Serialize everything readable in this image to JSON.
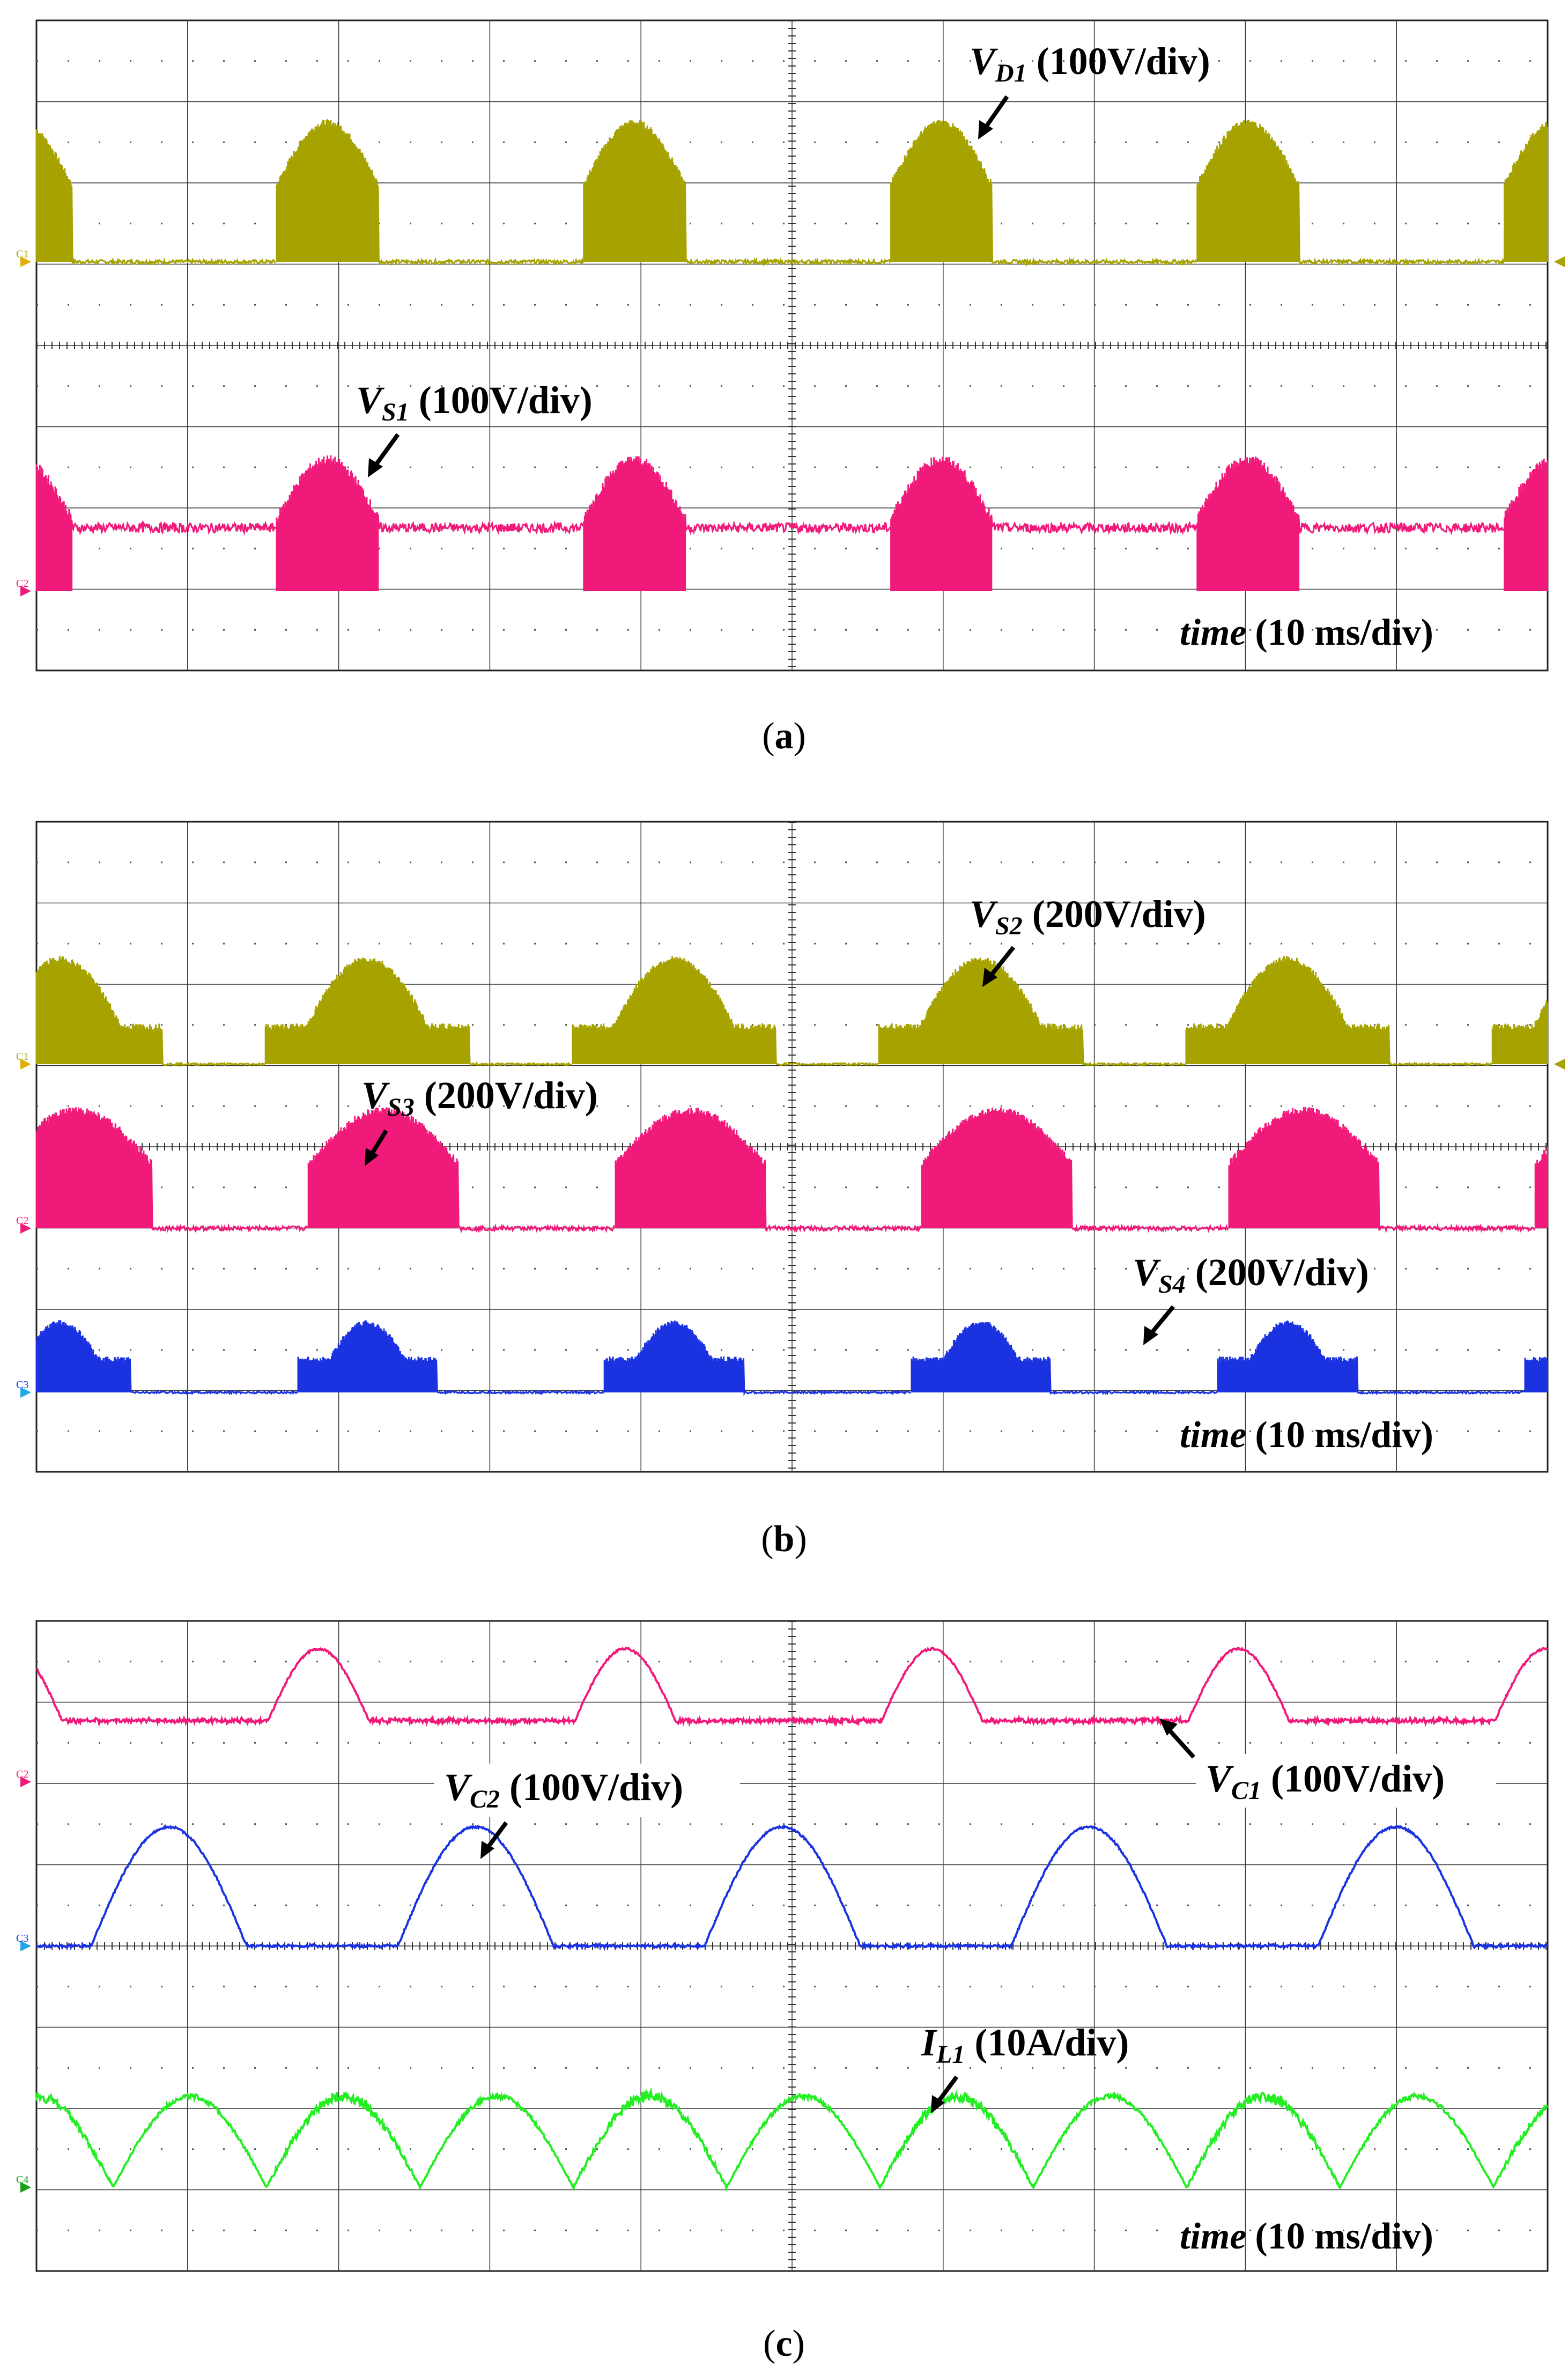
{
  "panels": [
    {
      "caption_letter": "a",
      "traces": [
        {
          "name": "V_D1",
          "label_main": "V",
          "label_sub": "D1",
          "scale": "(100V/div)",
          "color": "#a6a200",
          "ch": "C1",
          "type": "pulse"
        },
        {
          "name": "V_S1",
          "label_main": "V",
          "label_sub": "S1",
          "scale": "(100V/div)",
          "color": "#f01a7a",
          "ch": "C2",
          "type": "pulse_rest"
        }
      ],
      "time_word": "time",
      "time_scale": "(10 ms/div)"
    },
    {
      "caption_letter": "b",
      "traces": [
        {
          "name": "V_S2",
          "label_main": "V",
          "label_sub": "S2",
          "scale": "(200V/div)",
          "color": "#a6a200",
          "ch": "C1",
          "type": "bell_plateau"
        },
        {
          "name": "V_S3",
          "label_main": "V",
          "label_sub": "S3",
          "scale": "(200V/div)",
          "color": "#f01a7a",
          "ch": "C2",
          "type": "pulse"
        },
        {
          "name": "V_S4",
          "label_main": "V",
          "label_sub": "S4",
          "scale": "(200V/div)",
          "color": "#1a32e0",
          "ch": "C3",
          "type": "bell_plateau"
        }
      ],
      "time_word": "time",
      "time_scale": "(10 ms/div)"
    },
    {
      "caption_letter": "c",
      "traces": [
        {
          "name": "V_C1",
          "label_main": "V",
          "label_sub": "C1",
          "scale": "(100V/div)",
          "color": "#f01a7a",
          "ch": "C2",
          "type": "bump"
        },
        {
          "name": "V_C2",
          "label_main": "V",
          "label_sub": "C2",
          "scale": "(100V/div)",
          "color": "#1a32e0",
          "ch": "C3",
          "type": "bump"
        },
        {
          "name": "I_L1",
          "label_main": "I",
          "label_sub": "L1",
          "scale": "(10A/div)",
          "color": "#22ee22",
          "ch": "C4",
          "type": "rectsine"
        }
      ],
      "time_word": "time",
      "time_scale": "(10 ms/div)"
    }
  ],
  "chart_data": [
    {
      "type": "line",
      "x_unit": "ms",
      "x_per_div": 10,
      "divisions_x": 10,
      "divisions_y": 8,
      "grid": true,
      "series": [
        {
          "name": "V_D1",
          "volts_per_div": 100,
          "period_ms": 20
        },
        {
          "name": "V_S1",
          "volts_per_div": 100,
          "period_ms": 20
        }
      ]
    },
    {
      "type": "line",
      "x_unit": "ms",
      "x_per_div": 10,
      "divisions_x": 10,
      "divisions_y": 8,
      "grid": true,
      "series": [
        {
          "name": "V_S2",
          "volts_per_div": 200,
          "period_ms": 20
        },
        {
          "name": "V_S3",
          "volts_per_div": 200,
          "period_ms": 20
        },
        {
          "name": "V_S4",
          "volts_per_div": 200,
          "period_ms": 20
        }
      ]
    },
    {
      "type": "line",
      "x_unit": "ms",
      "x_per_div": 10,
      "divisions_x": 10,
      "divisions_y": 8,
      "grid": true,
      "series": [
        {
          "name": "V_C1",
          "volts_per_div": 100,
          "period_ms": 20
        },
        {
          "name": "V_C2",
          "volts_per_div": 100,
          "period_ms": 20
        },
        {
          "name": "I_L1",
          "amps_per_div": 10,
          "period_ms": 10
        }
      ]
    }
  ]
}
